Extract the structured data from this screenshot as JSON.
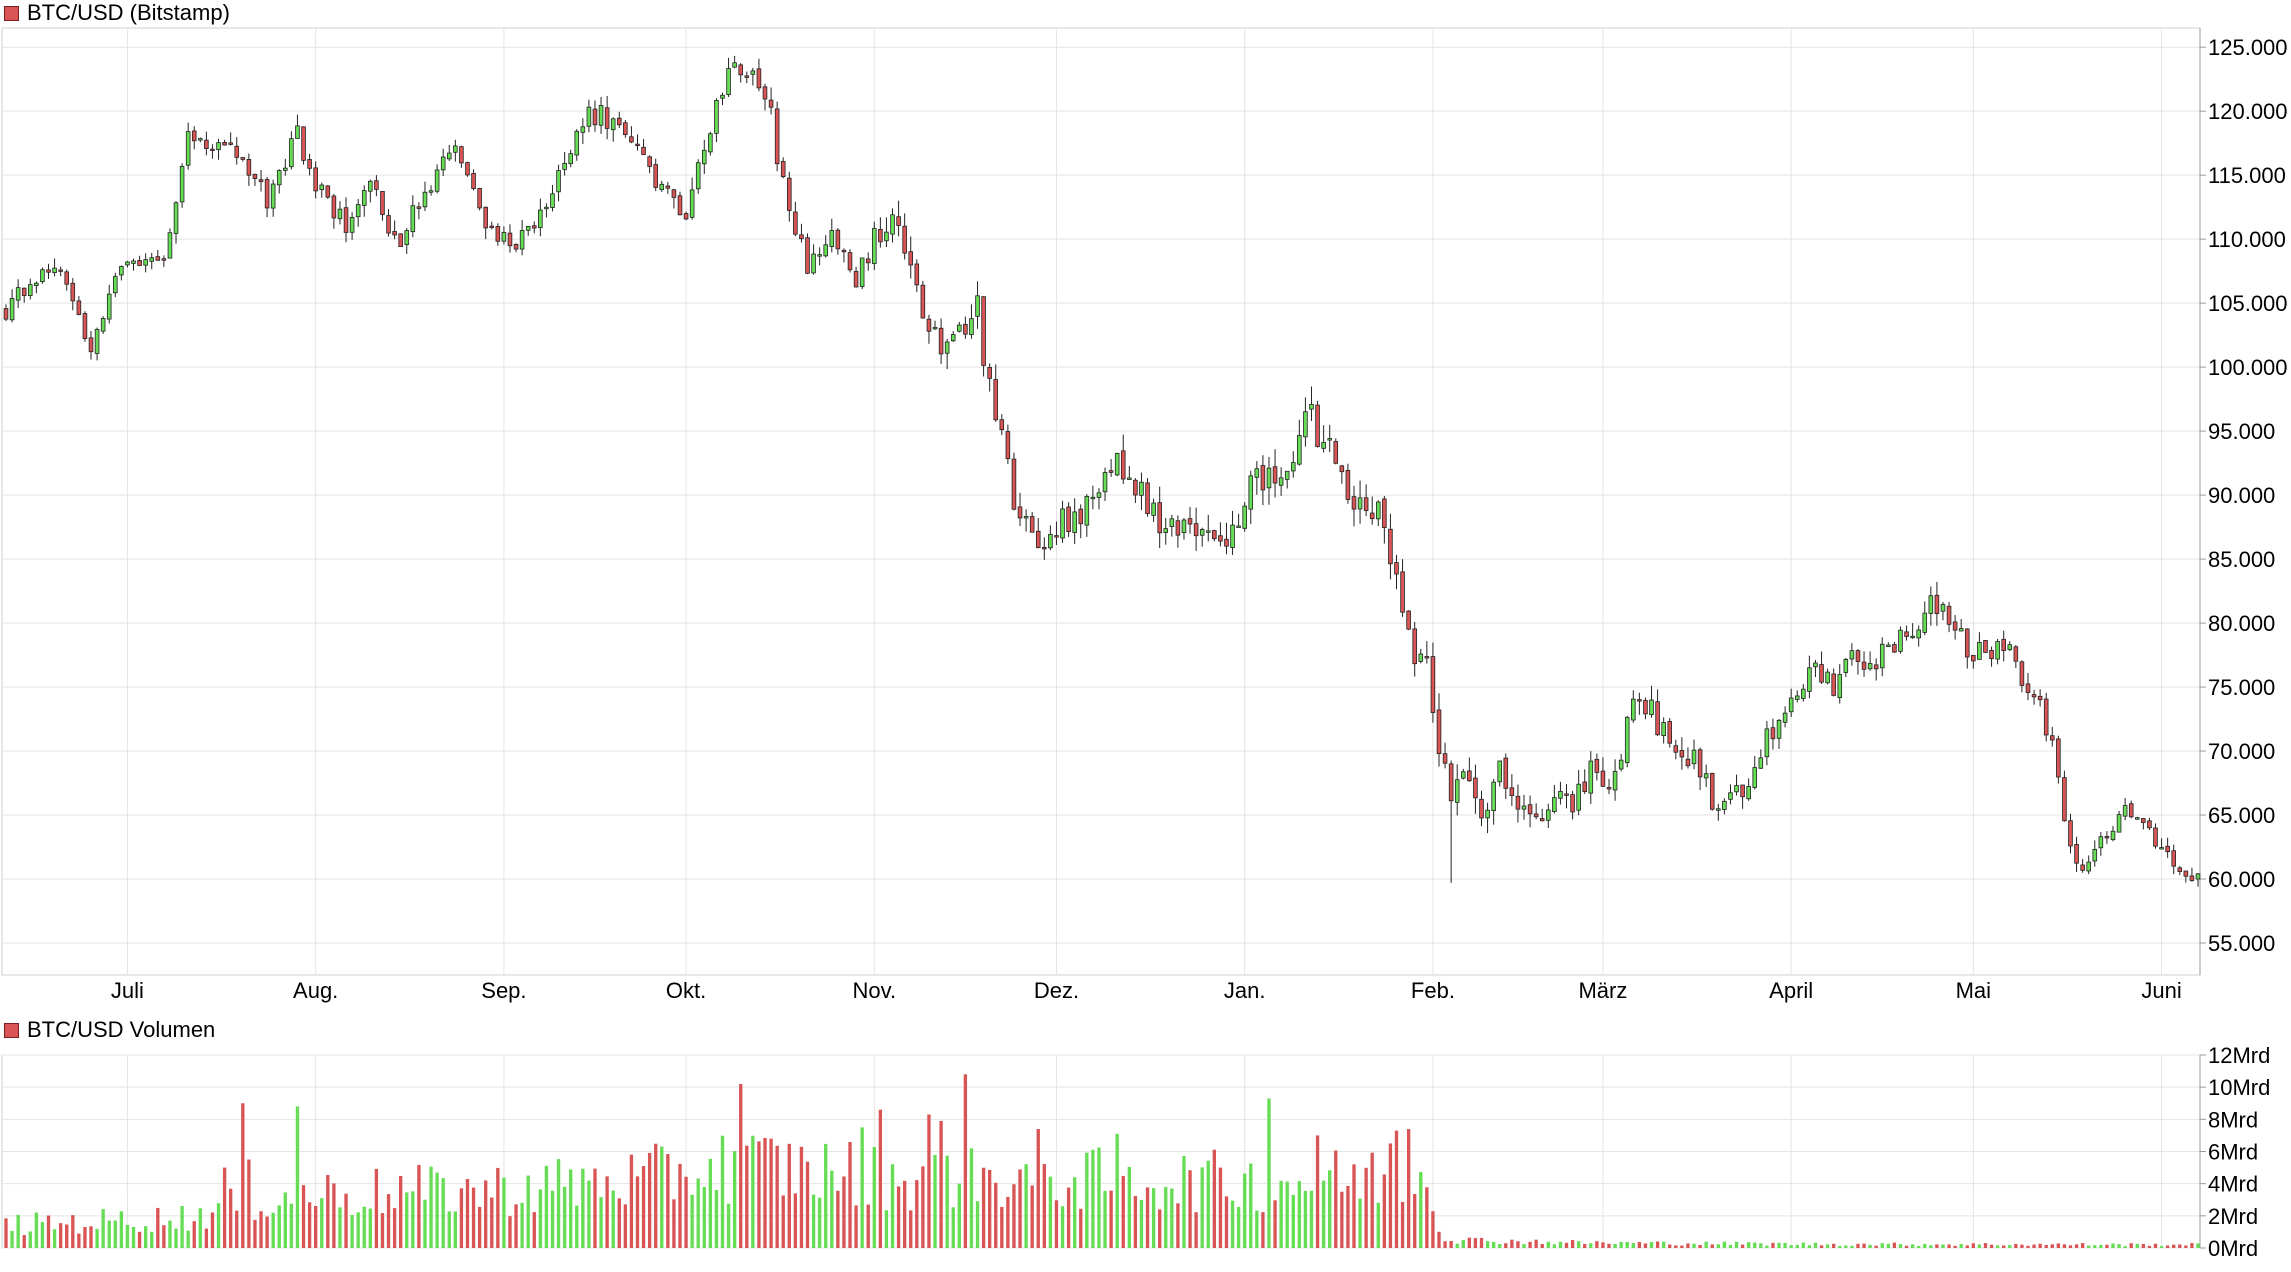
{
  "price_panel": {
    "legend_label": "BTC/USD (Bitstamp)"
  },
  "volume_panel": {
    "legend_label": "BTC/USD Volumen"
  },
  "colors": {
    "up": "#66dd55",
    "down": "#d95555",
    "grid": "#e4e4e4",
    "axis": "#999999",
    "legend_swatch": "#d95555"
  },
  "chart_data": [
    {
      "type": "candlestick",
      "title": "BTC/USD (Bitstamp)",
      "ylim": [
        52500,
        126500
      ],
      "y_ticks": [
        55000,
        60000,
        65000,
        70000,
        75000,
        80000,
        85000,
        90000,
        95000,
        100000,
        105000,
        110000,
        115000,
        120000,
        125000
      ],
      "y_tick_labels": [
        "55.000",
        "60.000",
        "65.000",
        "70.000",
        "75.000",
        "80.000",
        "85.000",
        "90.000",
        "95.000",
        "100.000",
        "105.000",
        "110.000",
        "115.000",
        "120.000",
        "125.000"
      ],
      "x_tick_labels": [
        "Juli",
        "Aug.",
        "Sep.",
        "Okt.",
        "Nov.",
        "Dez.",
        "Jan.",
        "Feb.",
        "März",
        "April",
        "Mai",
        "Juni"
      ],
      "x_tick_day_index": [
        20,
        51,
        82,
        112,
        143,
        173,
        204,
        235,
        263,
        294,
        324,
        355
      ],
      "grid": true,
      "y_axis_side": "right",
      "anchors": [
        [
          0,
          104500
        ],
        [
          8,
          108500
        ],
        [
          14,
          101500
        ],
        [
          20,
          109000
        ],
        [
          26,
          108000
        ],
        [
          30,
          118500
        ],
        [
          38,
          116500
        ],
        [
          43,
          113000
        ],
        [
          48,
          118000
        ],
        [
          52,
          113500
        ],
        [
          56,
          111000
        ],
        [
          60,
          115000
        ],
        [
          64,
          109500
        ],
        [
          72,
          115500
        ],
        [
          74,
          117000
        ],
        [
          78,
          112000
        ],
        [
          82,
          110000
        ],
        [
          86,
          110200
        ],
        [
          90,
          113500
        ],
        [
          94,
          119000
        ],
        [
          98,
          120000
        ],
        [
          104,
          116500
        ],
        [
          108,
          113500
        ],
        [
          112,
          112500
        ],
        [
          114,
          116500
        ],
        [
          116,
          118500
        ],
        [
          119,
          122500
        ],
        [
          122,
          123500
        ],
        [
          126,
          119500
        ],
        [
          129,
          111500
        ],
        [
          132,
          108000
        ],
        [
          136,
          110500
        ],
        [
          140,
          106500
        ],
        [
          143,
          110000
        ],
        [
          146,
          112500
        ],
        [
          148,
          108500
        ],
        [
          152,
          102500
        ],
        [
          156,
          101500
        ],
        [
          160,
          104500
        ],
        [
          162,
          98000
        ],
        [
          164,
          94000
        ],
        [
          167,
          88000
        ],
        [
          170,
          85500
        ],
        [
          174,
          88500
        ],
        [
          177,
          87500
        ],
        [
          179,
          90500
        ],
        [
          182,
          93000
        ],
        [
          185,
          90500
        ],
        [
          188,
          89500
        ],
        [
          191,
          87000
        ],
        [
          195,
          88500
        ],
        [
          198,
          86000
        ],
        [
          202,
          87500
        ],
        [
          206,
          92000
        ],
        [
          210,
          90500
        ],
        [
          214,
          96500
        ],
        [
          218,
          93000
        ],
        [
          222,
          89500
        ],
        [
          226,
          89000
        ],
        [
          229,
          84000
        ],
        [
          232,
          78000
        ],
        [
          234,
          76500
        ],
        [
          236,
          71000
        ],
        [
          238,
          66000
        ],
        [
          240,
          69500
        ],
        [
          243,
          65500
        ],
        [
          246,
          68500
        ],
        [
          249,
          66000
        ],
        [
          252,
          64500
        ],
        [
          255,
          66500
        ],
        [
          258,
          65000
        ],
        [
          261,
          69000
        ],
        [
          264,
          67000
        ],
        [
          266,
          70000
        ],
        [
          269,
          75000
        ],
        [
          272,
          72000
        ],
        [
          275,
          69500
        ],
        [
          278,
          70000
        ],
        [
          281,
          66000
        ],
        [
          284,
          66500
        ],
        [
          287,
          67500
        ],
        [
          290,
          71000
        ],
        [
          294,
          73500
        ],
        [
          298,
          76500
        ],
        [
          301,
          75000
        ],
        [
          304,
          78500
        ],
        [
          307,
          76500
        ],
        [
          310,
          78000
        ],
        [
          314,
          80000
        ],
        [
          317,
          81500
        ],
        [
          320,
          80500
        ],
        [
          324,
          77500
        ],
        [
          328,
          78000
        ],
        [
          331,
          77500
        ],
        [
          333,
          74000
        ],
        [
          335,
          73500
        ],
        [
          337,
          70500
        ],
        [
          339,
          65000
        ],
        [
          341,
          61000
        ],
        [
          344,
          62000
        ],
        [
          347,
          64000
        ],
        [
          349,
          65500
        ],
        [
          352,
          64000
        ],
        [
          355,
          62500
        ],
        [
          358,
          60000
        ],
        [
          360,
          59800
        ]
      ],
      "note_volatility": [
        [
          0,
          0.009
        ],
        [
          140,
          0.011
        ],
        [
          150,
          0.016
        ],
        [
          230,
          0.02
        ],
        [
          240,
          0.024
        ],
        [
          270,
          0.02
        ],
        [
          330,
          0.015
        ],
        [
          361,
          0.015
        ]
      ]
    },
    {
      "type": "bar",
      "title": "BTC/USD Volumen",
      "ylim": [
        0,
        12000000000
      ],
      "y_ticks": [
        0,
        2000000000,
        4000000000,
        6000000000,
        8000000000,
        10000000000,
        12000000000
      ],
      "y_tick_labels": [
        "0Mrd",
        "2Mrd",
        "4Mrd",
        "6Mrd",
        "8Mrd",
        "10Mrd",
        "12Mrd"
      ],
      "grid": true,
      "y_axis_side": "right",
      "volume_level": [
        [
          0,
          1.5
        ],
        [
          30,
          2.0
        ],
        [
          45,
          3.5
        ],
        [
          80,
          3.8
        ],
        [
          105,
          4.5
        ],
        [
          120,
          5.5
        ],
        [
          150,
          4.5
        ],
        [
          180,
          4.5
        ],
        [
          210,
          4.3
        ],
        [
          234,
          4.8
        ],
        [
          237,
          0.55
        ],
        [
          260,
          0.35
        ],
        [
          300,
          0.25
        ],
        [
          361,
          0.22
        ]
      ],
      "volume_spikes": [
        [
          39,
          9.0
        ],
        [
          48,
          8.8
        ],
        [
          36,
          5.0
        ],
        [
          40,
          5.5
        ],
        [
          121,
          10.2
        ],
        [
          126,
          6.8
        ],
        [
          141,
          7.5
        ],
        [
          144,
          8.6
        ],
        [
          152,
          8.3
        ],
        [
          154,
          7.9
        ],
        [
          158,
          10.8
        ],
        [
          170,
          7.4
        ],
        [
          183,
          7.1
        ],
        [
          208,
          9.3
        ],
        [
          216,
          7.0
        ],
        [
          229,
          7.3
        ],
        [
          231,
          7.4
        ],
        [
          228,
          6.5
        ],
        [
          200,
          5.0
        ]
      ],
      "units": "Mrd"
    }
  ]
}
